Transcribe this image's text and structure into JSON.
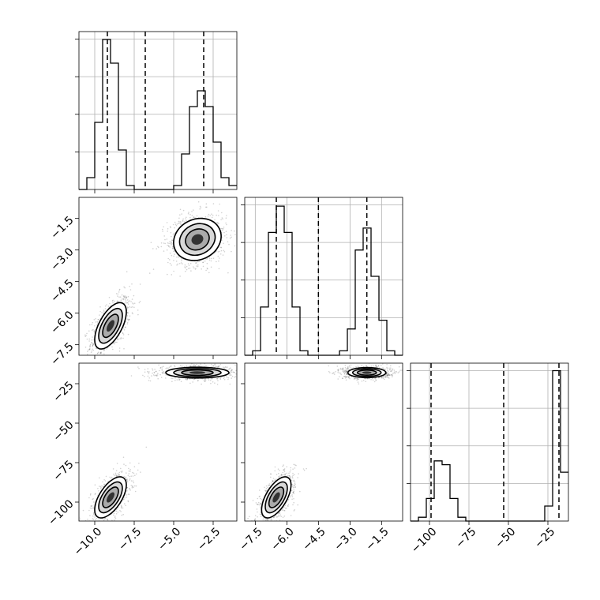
{
  "chart_data": {
    "type": "corner",
    "colors": {
      "line": "#000000",
      "grid": "#b0b0b0",
      "density_dark": "#000000",
      "density_light": "#bbbbbb"
    },
    "params": [
      {
        "range": [
          -11.0,
          -1.0
        ],
        "ticks": [
          -10.0,
          -7.5,
          -5.0,
          -2.5
        ],
        "tick_labels": [
          "−10.0",
          "−7.5",
          "−5.0",
          "−2.5"
        ]
      },
      {
        "range": [
          -8.0,
          -0.5
        ],
        "ticks": [
          -7.5,
          -6.0,
          -4.5,
          -3.0,
          -1.5
        ],
        "tick_labels": [
          "−7.5",
          "−6.0",
          "−4.5",
          "−3.0",
          "−1.5"
        ]
      },
      {
        "range": [
          -112.0,
          -12.0
        ],
        "ticks": [
          -100,
          -75,
          -50,
          -25
        ],
        "tick_labels": [
          "−100",
          "−75",
          "−50",
          "−25"
        ]
      }
    ],
    "histograms": [
      {
        "param": 0,
        "bin_edges": [
          -11.0,
          -10.5,
          -10.0,
          -9.5,
          -9.0,
          -8.5,
          -8.0,
          -7.5,
          -7.0,
          -6.5,
          -6.0,
          -5.5,
          -5.0,
          -4.5,
          -4.0,
          -3.5,
          -3.0,
          -2.5,
          -2.0,
          -1.5,
          -1.0
        ],
        "counts": [
          0,
          3,
          17,
          38,
          32,
          10,
          1,
          0,
          0,
          0,
          0,
          0,
          1,
          9,
          21,
          25,
          21,
          12,
          3,
          1
        ],
        "ymax": 40,
        "quantiles": [
          -9.2,
          -6.8,
          -3.1
        ]
      },
      {
        "param": 1,
        "bin_edges": [
          -8.0,
          -7.625,
          -7.25,
          -6.875,
          -6.5,
          -6.125,
          -5.75,
          -5.375,
          -5.0,
          -4.625,
          -4.25,
          -3.875,
          -3.5,
          -3.125,
          -2.75,
          -2.375,
          -2.0,
          -1.625,
          -1.25,
          -0.875,
          -0.5
        ],
        "counts": [
          0,
          1,
          11,
          28,
          34,
          28,
          11,
          1,
          0,
          0,
          0,
          0,
          1,
          6,
          24,
          29,
          18,
          8,
          1,
          0
        ],
        "ymax": 36,
        "quantiles": [
          -6.5,
          -4.5,
          -2.2
        ]
      },
      {
        "param": 2,
        "bin_edges": [
          -112,
          -107,
          -102,
          -97,
          -92,
          -87,
          -82,
          -77,
          -72,
          -67,
          -62,
          -57,
          -52,
          -47,
          -42,
          -37,
          -32,
          -27,
          -22,
          -17,
          -12
        ],
        "counts": [
          0,
          1,
          6,
          16,
          15,
          6,
          1,
          0,
          0,
          0,
          0,
          0,
          0,
          0,
          0,
          0,
          0,
          4,
          40,
          13
        ],
        "ymax": 42,
        "quantiles": [
          -99,
          -53,
          -18
        ]
      }
    ],
    "pairs": [
      {
        "x_param": 0,
        "y_param": 1,
        "modes": [
          {
            "center": [
              -9.0,
              -6.6
            ],
            "spread": [
              0.5,
              0.55
            ],
            "rotation": 0.6
          },
          {
            "center": [
              -3.5,
              -2.5
            ],
            "spread": [
              0.75,
              0.5
            ],
            "rotation": 0.15
          }
        ]
      },
      {
        "x_param": 0,
        "y_param": 2,
        "modes": [
          {
            "center": [
              -9.0,
              -97
            ],
            "spread": [
              0.5,
              6.5
            ],
            "rotation": 0.6
          },
          {
            "center": [
              -3.5,
              -18
            ],
            "spread": [
              1.0,
              1.7
            ],
            "rotation": 0.0
          }
        ]
      },
      {
        "x_param": 1,
        "y_param": 2,
        "modes": [
          {
            "center": [
              -6.5,
              -97
            ],
            "spread": [
              0.35,
              6.5
            ],
            "rotation": 0.6
          },
          {
            "center": [
              -2.2,
              -18
            ],
            "spread": [
              0.45,
              1.6
            ],
            "rotation": 0.0
          }
        ]
      }
    ]
  }
}
